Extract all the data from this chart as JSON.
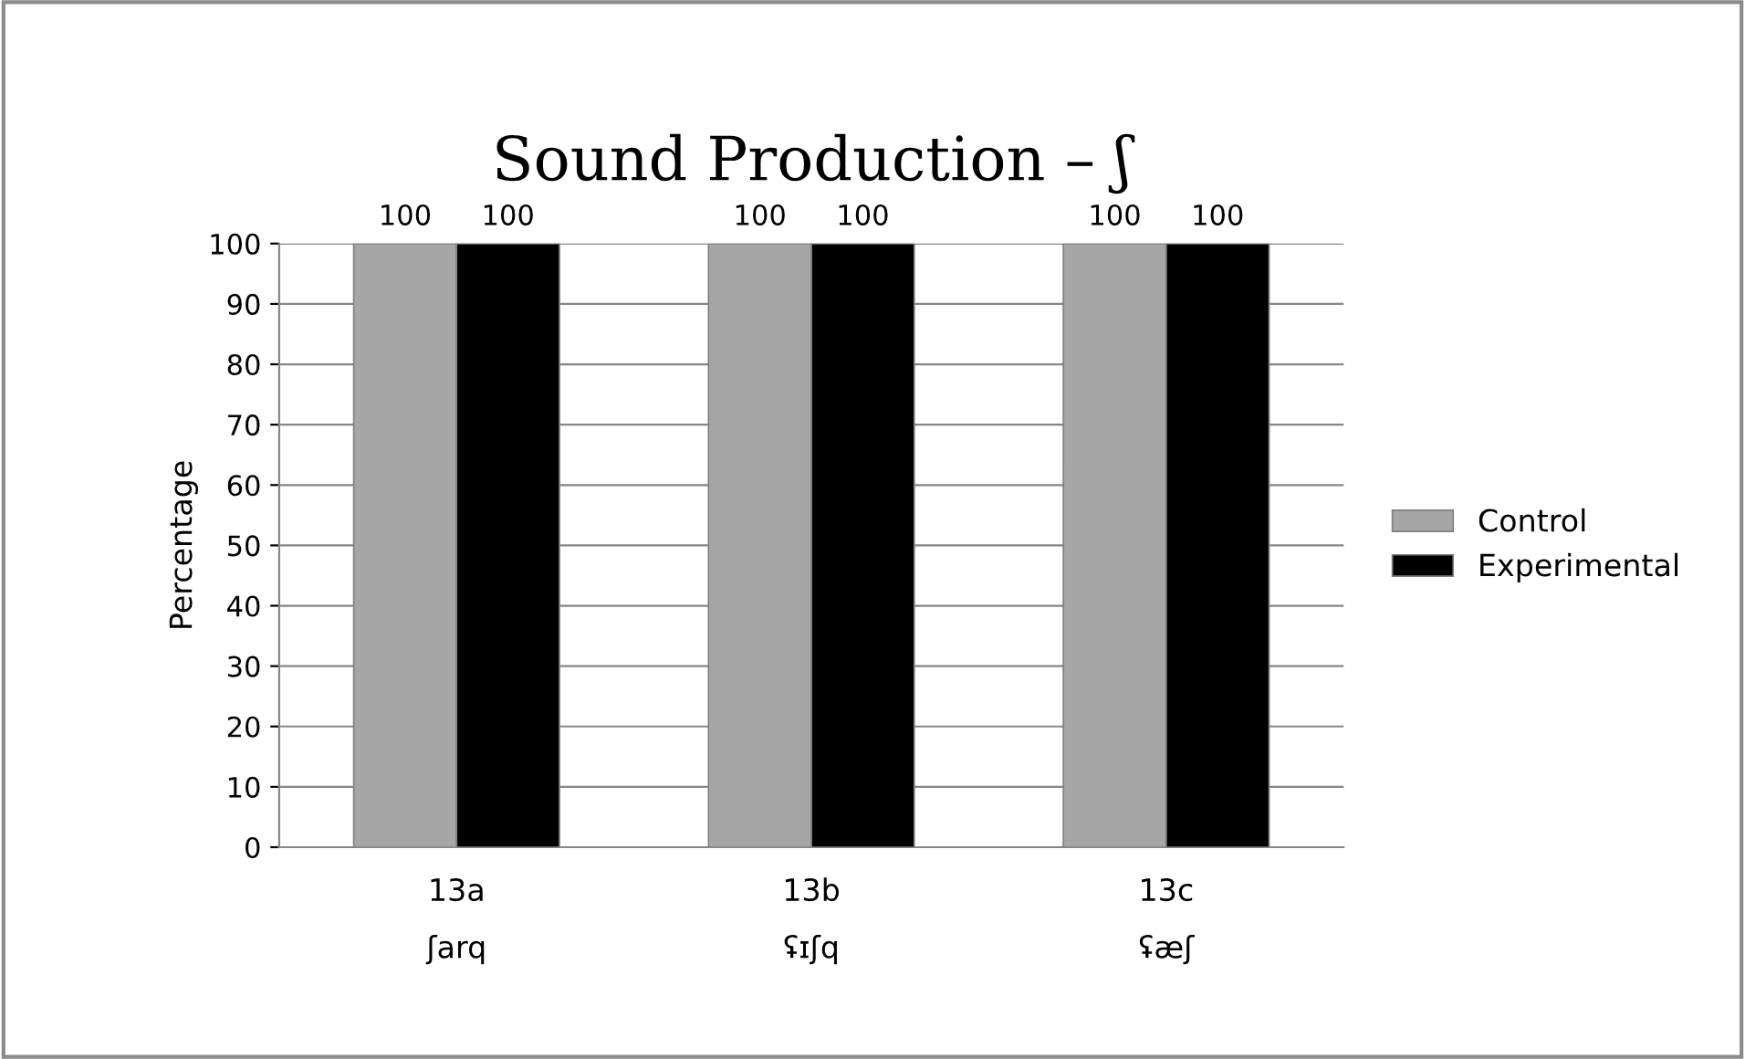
{
  "chart_data": {
    "type": "bar",
    "title": "Sound Production – ʃ",
    "ylabel": "Percentage",
    "categories": [
      "13a\nʃarq",
      "13b\nʢɪʃq",
      "13c\nʢæʃ"
    ],
    "series": [
      {
        "name": "Control",
        "color": "#a6a6a6",
        "values": [
          100,
          100,
          100
        ]
      },
      {
        "name": "Experimental",
        "color": "#000000",
        "values": [
          100,
          100,
          100
        ]
      }
    ],
    "ylim": [
      0,
      100
    ],
    "yticks": [
      0,
      10,
      20,
      30,
      40,
      50,
      60,
      70,
      80,
      90,
      100
    ],
    "grid": "y",
    "legend": "right",
    "data_labels": true
  }
}
